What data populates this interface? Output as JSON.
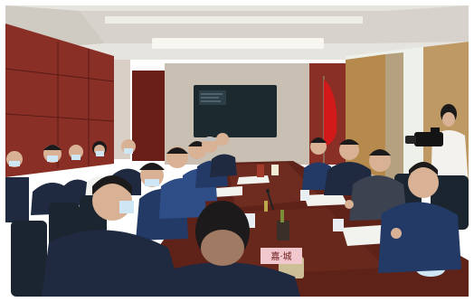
{
  "scene": {
    "colors": {
      "ceiling": "#e6e4df",
      "cove_light": "#f7f6f1",
      "wall_wood": "#8a2f26",
      "wall_wood_dark": "#6a2019",
      "left_wall_light": "#d9cfc7",
      "window_light": "#eef0ea",
      "curtain": "#b58a4c",
      "curtain_dark": "#8f6a37",
      "screen": "#1c2a2f",
      "flag_red": "#d21a1a",
      "table": "#5e2218",
      "table_highlight": "#7a3526",
      "chair": "#1b2530",
      "suit_dark": "#1f2940",
      "suit_navy": "#243a66",
      "suit_blue": "#2f4d86",
      "skin": "#d9b194",
      "hair": "#1c1a1a",
      "mask": "#cfe6f5",
      "name_card_pink": "#f2c8cf",
      "paper": "#f2f2ee",
      "shirt_white": "#f4f2ee"
    },
    "icons": [
      "camera-icon",
      "flag-icon",
      "display-screen-icon",
      "microphone-icon"
    ]
  },
  "name_card": {
    "text": "嘉·城"
  }
}
